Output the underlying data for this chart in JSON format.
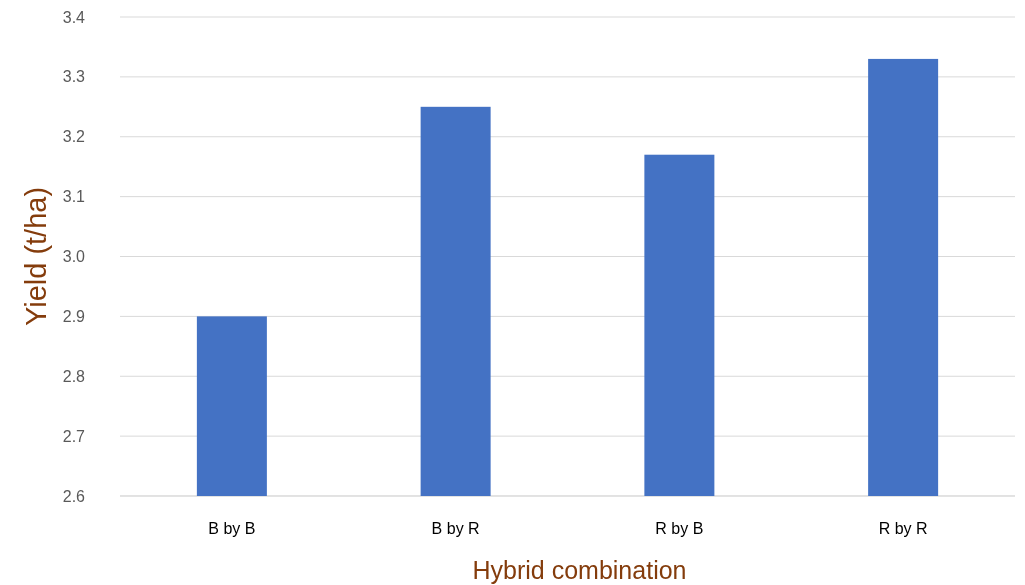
{
  "chart_data": {
    "type": "bar",
    "xlabel": "Hybrid combination",
    "ylabel": "Yield (t/ha)",
    "categories": [
      "B by B",
      "B by R",
      "R by B",
      "R by R"
    ],
    "values": [
      2.9,
      3.25,
      3.17,
      3.33
    ],
    "color": "#4472c4",
    "ylim": [
      2.6,
      3.4
    ],
    "yticks": [
      2.6,
      2.7,
      2.8,
      2.9,
      {
        "value": 3.0,
        "label": "3.0"
      },
      3.1,
      3.2,
      3.3,
      3.4
    ],
    "grid": "y"
  }
}
